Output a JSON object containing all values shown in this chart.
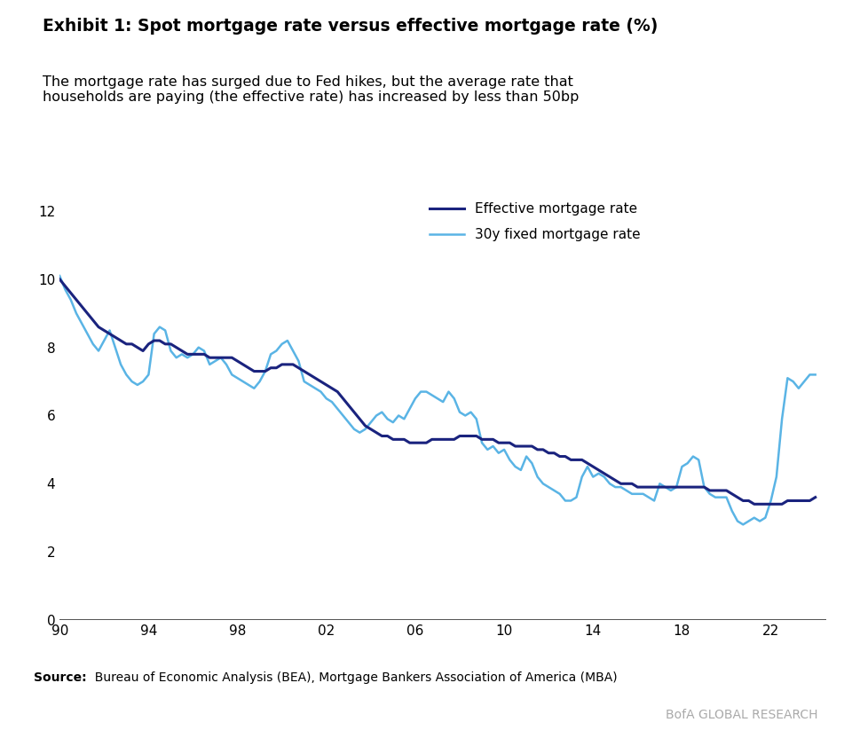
{
  "title_bold": "Exhibit 1: Spot mortgage rate versus effective mortgage rate (%)",
  "subtitle": "The mortgage rate has surged due to Fed hikes, but the average rate that\nhouseholds are paying (the effective rate) has increased by less than 50bp",
  "source_bold": "Source:",
  "source_text": "  Bureau of Economic Analysis (BEA), Mortgage Bankers Association of America (MBA)",
  "branding": "BofA GLOBAL RESEARCH",
  "effective_color": "#1a237e",
  "spot_color": "#5ab4e5",
  "ylim": [
    0,
    13
  ],
  "yticks": [
    0,
    2,
    4,
    6,
    8,
    10,
    12
  ],
  "xlim": [
    1990.0,
    2024.5
  ],
  "xticks": [
    1990,
    1994,
    1998,
    2002,
    2006,
    2010,
    2014,
    2018,
    2022
  ],
  "xticklabels": [
    "90",
    "94",
    "98",
    "02",
    "06",
    "10",
    "14",
    "18",
    "22"
  ],
  "effective_x": [
    1990.0,
    1990.25,
    1990.5,
    1990.75,
    1991.0,
    1991.25,
    1991.5,
    1991.75,
    1992.0,
    1992.25,
    1992.5,
    1992.75,
    1993.0,
    1993.25,
    1993.5,
    1993.75,
    1994.0,
    1994.25,
    1994.5,
    1994.75,
    1995.0,
    1995.25,
    1995.5,
    1995.75,
    1996.0,
    1996.25,
    1996.5,
    1996.75,
    1997.0,
    1997.25,
    1997.5,
    1997.75,
    1998.0,
    1998.25,
    1998.5,
    1998.75,
    1999.0,
    1999.25,
    1999.5,
    1999.75,
    2000.0,
    2000.25,
    2000.5,
    2000.75,
    2001.0,
    2001.25,
    2001.5,
    2001.75,
    2002.0,
    2002.25,
    2002.5,
    2002.75,
    2003.0,
    2003.25,
    2003.5,
    2003.75,
    2004.0,
    2004.25,
    2004.5,
    2004.75,
    2005.0,
    2005.25,
    2005.5,
    2005.75,
    2006.0,
    2006.25,
    2006.5,
    2006.75,
    2007.0,
    2007.25,
    2007.5,
    2007.75,
    2008.0,
    2008.25,
    2008.5,
    2008.75,
    2009.0,
    2009.25,
    2009.5,
    2009.75,
    2010.0,
    2010.25,
    2010.5,
    2010.75,
    2011.0,
    2011.25,
    2011.5,
    2011.75,
    2012.0,
    2012.25,
    2012.5,
    2012.75,
    2013.0,
    2013.25,
    2013.5,
    2013.75,
    2014.0,
    2014.25,
    2014.5,
    2014.75,
    2015.0,
    2015.25,
    2015.5,
    2015.75,
    2016.0,
    2016.25,
    2016.5,
    2016.75,
    2017.0,
    2017.25,
    2017.5,
    2017.75,
    2018.0,
    2018.25,
    2018.5,
    2018.75,
    2019.0,
    2019.25,
    2019.5,
    2019.75,
    2020.0,
    2020.25,
    2020.5,
    2020.75,
    2021.0,
    2021.25,
    2021.5,
    2021.75,
    2022.0,
    2022.25,
    2022.5,
    2022.75,
    2023.0,
    2023.25,
    2023.5,
    2023.75,
    2024.0
  ],
  "effective_y": [
    10.0,
    9.8,
    9.6,
    9.4,
    9.2,
    9.0,
    8.8,
    8.6,
    8.5,
    8.4,
    8.3,
    8.2,
    8.1,
    8.1,
    8.0,
    7.9,
    8.1,
    8.2,
    8.2,
    8.1,
    8.1,
    8.0,
    7.9,
    7.8,
    7.8,
    7.8,
    7.8,
    7.7,
    7.7,
    7.7,
    7.7,
    7.7,
    7.6,
    7.5,
    7.4,
    7.3,
    7.3,
    7.3,
    7.4,
    7.4,
    7.5,
    7.5,
    7.5,
    7.4,
    7.3,
    7.2,
    7.1,
    7.0,
    6.9,
    6.8,
    6.7,
    6.5,
    6.3,
    6.1,
    5.9,
    5.7,
    5.6,
    5.5,
    5.4,
    5.4,
    5.3,
    5.3,
    5.3,
    5.2,
    5.2,
    5.2,
    5.2,
    5.3,
    5.3,
    5.3,
    5.3,
    5.3,
    5.4,
    5.4,
    5.4,
    5.4,
    5.3,
    5.3,
    5.3,
    5.2,
    5.2,
    5.2,
    5.1,
    5.1,
    5.1,
    5.1,
    5.0,
    5.0,
    4.9,
    4.9,
    4.8,
    4.8,
    4.7,
    4.7,
    4.7,
    4.6,
    4.5,
    4.4,
    4.3,
    4.2,
    4.1,
    4.0,
    4.0,
    4.0,
    3.9,
    3.9,
    3.9,
    3.9,
    3.9,
    3.9,
    3.9,
    3.9,
    3.9,
    3.9,
    3.9,
    3.9,
    3.9,
    3.8,
    3.8,
    3.8,
    3.8,
    3.7,
    3.6,
    3.5,
    3.5,
    3.4,
    3.4,
    3.4,
    3.4,
    3.4,
    3.4,
    3.5,
    3.5,
    3.5,
    3.5,
    3.5,
    3.6
  ],
  "spot_x": [
    1990.0,
    1990.25,
    1990.5,
    1990.75,
    1991.0,
    1991.25,
    1991.5,
    1991.75,
    1992.0,
    1992.25,
    1992.5,
    1992.75,
    1993.0,
    1993.25,
    1993.5,
    1993.75,
    1994.0,
    1994.25,
    1994.5,
    1994.75,
    1995.0,
    1995.25,
    1995.5,
    1995.75,
    1996.0,
    1996.25,
    1996.5,
    1996.75,
    1997.0,
    1997.25,
    1997.5,
    1997.75,
    1998.0,
    1998.25,
    1998.5,
    1998.75,
    1999.0,
    1999.25,
    1999.5,
    1999.75,
    2000.0,
    2000.25,
    2000.5,
    2000.75,
    2001.0,
    2001.25,
    2001.5,
    2001.75,
    2002.0,
    2002.25,
    2002.5,
    2002.75,
    2003.0,
    2003.25,
    2003.5,
    2003.75,
    2004.0,
    2004.25,
    2004.5,
    2004.75,
    2005.0,
    2005.25,
    2005.5,
    2005.75,
    2006.0,
    2006.25,
    2006.5,
    2006.75,
    2007.0,
    2007.25,
    2007.5,
    2007.75,
    2008.0,
    2008.25,
    2008.5,
    2008.75,
    2009.0,
    2009.25,
    2009.5,
    2009.75,
    2010.0,
    2010.25,
    2010.5,
    2010.75,
    2011.0,
    2011.25,
    2011.5,
    2011.75,
    2012.0,
    2012.25,
    2012.5,
    2012.75,
    2013.0,
    2013.25,
    2013.5,
    2013.75,
    2014.0,
    2014.25,
    2014.5,
    2014.75,
    2015.0,
    2015.25,
    2015.5,
    2015.75,
    2016.0,
    2016.25,
    2016.5,
    2016.75,
    2017.0,
    2017.25,
    2017.5,
    2017.75,
    2018.0,
    2018.25,
    2018.5,
    2018.75,
    2019.0,
    2019.25,
    2019.5,
    2019.75,
    2020.0,
    2020.25,
    2020.5,
    2020.75,
    2021.0,
    2021.25,
    2021.5,
    2021.75,
    2022.0,
    2022.25,
    2022.5,
    2022.75,
    2023.0,
    2023.25,
    2023.5,
    2023.75,
    2024.0
  ],
  "spot_y": [
    10.1,
    9.7,
    9.4,
    9.0,
    8.7,
    8.4,
    8.1,
    7.9,
    8.2,
    8.5,
    8.0,
    7.5,
    7.2,
    7.0,
    6.9,
    7.0,
    7.2,
    8.4,
    8.6,
    8.5,
    7.9,
    7.7,
    7.8,
    7.7,
    7.8,
    8.0,
    7.9,
    7.5,
    7.6,
    7.7,
    7.5,
    7.2,
    7.1,
    7.0,
    6.9,
    6.8,
    7.0,
    7.3,
    7.8,
    7.9,
    8.1,
    8.2,
    7.9,
    7.6,
    7.0,
    6.9,
    6.8,
    6.7,
    6.5,
    6.4,
    6.2,
    6.0,
    5.8,
    5.6,
    5.5,
    5.6,
    5.8,
    6.0,
    6.1,
    5.9,
    5.8,
    6.0,
    5.9,
    6.2,
    6.5,
    6.7,
    6.7,
    6.6,
    6.5,
    6.4,
    6.7,
    6.5,
    6.1,
    6.0,
    6.1,
    5.9,
    5.2,
    5.0,
    5.1,
    4.9,
    5.0,
    4.7,
    4.5,
    4.4,
    4.8,
    4.6,
    4.2,
    4.0,
    3.9,
    3.8,
    3.7,
    3.5,
    3.5,
    3.6,
    4.2,
    4.5,
    4.2,
    4.3,
    4.2,
    4.0,
    3.9,
    3.9,
    3.8,
    3.7,
    3.7,
    3.7,
    3.6,
    3.5,
    4.0,
    3.9,
    3.8,
    3.9,
    4.5,
    4.6,
    4.8,
    4.7,
    3.9,
    3.7,
    3.6,
    3.6,
    3.6,
    3.2,
    2.9,
    2.8,
    2.9,
    3.0,
    2.9,
    3.0,
    3.5,
    4.2,
    5.9,
    7.1,
    7.0,
    6.8,
    7.0,
    7.2,
    7.2
  ],
  "background_color": "#ffffff",
  "accent_bar_color": "#1f5fa6",
  "legend_fontsize": 11,
  "axis_fontsize": 11
}
